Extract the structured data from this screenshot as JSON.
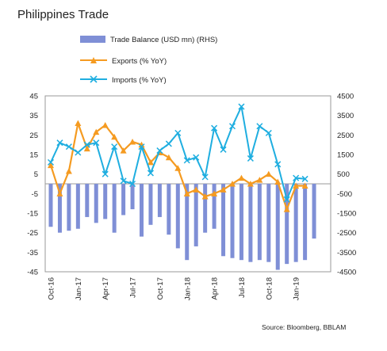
{
  "chart_data": {
    "type": "bar+line",
    "title": "Philippines Trade",
    "source": "Source: Bloomberg, BBLAM",
    "legend": [
      {
        "label": "Trade Balance (USD mn) (RHS)",
        "kind": "bar",
        "color": "#7f8fd6"
      },
      {
        "label": "Exports (% YoY)",
        "kind": "line-triangle",
        "color": "#f59b21"
      },
      {
        "label": "Imports (% YoY)",
        "kind": "line-x",
        "color": "#1faee0"
      }
    ],
    "x_tick_labels": [
      {
        "label": "Oct-16",
        "index": 0
      },
      {
        "label": "Jan-17",
        "index": 3
      },
      {
        "label": "Apr-17",
        "index": 6
      },
      {
        "label": "Jul-17",
        "index": 9
      },
      {
        "label": "Oct-17",
        "index": 12
      },
      {
        "label": "Jan-18",
        "index": 15
      },
      {
        "label": "Apr-18",
        "index": 18
      },
      {
        "label": "Jul-18",
        "index": 21
      },
      {
        "label": "Oct-18",
        "index": 24
      },
      {
        "label": "Jan-19",
        "index": 27
      }
    ],
    "y_left": {
      "ticks": [
        "45",
        "35",
        "25",
        "15",
        "5",
        "-5",
        "-15",
        "-25",
        "-35",
        "-45"
      ],
      "min": -45,
      "max": 45
    },
    "y_right": {
      "ticks": [
        "4500",
        "3500",
        "2500",
        "1500",
        "500",
        "-500",
        "-1500",
        "-2500",
        "-3500",
        "-4500"
      ],
      "min": -4500,
      "max": 4500
    },
    "series": [
      {
        "name": "Trade Balance (USD mn) (RHS)",
        "axis": "right",
        "values": [
          -2200,
          -2500,
          -2400,
          -2300,
          -1700,
          -2000,
          -1800,
          -2500,
          -1600,
          -1300,
          -2700,
          -2100,
          -1700,
          -2600,
          -3300,
          -3900,
          -3200,
          -2500,
          -2300,
          -3700,
          -3800,
          -3900,
          -4000,
          -3900,
          -4000,
          -4400,
          -4100,
          -4000,
          -3900,
          -2800
        ]
      },
      {
        "name": "Exports (% YoY)",
        "axis": "left",
        "values": [
          9.5,
          -5,
          6.5,
          31,
          18,
          26.5,
          30,
          24,
          17,
          21.5,
          20,
          11,
          16,
          13.5,
          8,
          -5,
          -3,
          -6.5,
          -5,
          -3,
          0,
          3,
          0,
          2,
          5,
          1,
          -13,
          -1,
          -1
        ]
      },
      {
        "name": "Imports (% YoY)",
        "axis": "left",
        "values": [
          11,
          21,
          19,
          16,
          20,
          21,
          5,
          19,
          1.5,
          0,
          19,
          5.5,
          17,
          20.5,
          26,
          12,
          13.5,
          3.5,
          28.5,
          17.5,
          29.5,
          39.5,
          13,
          29.5,
          26,
          10,
          -8,
          3,
          2.5
        ]
      }
    ]
  }
}
